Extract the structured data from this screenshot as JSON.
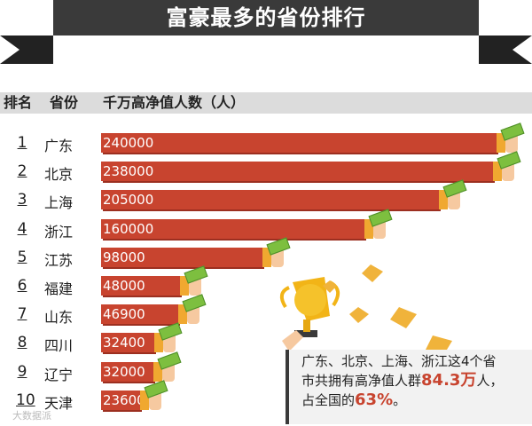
{
  "title": "富豪最多的省份排行",
  "headers": {
    "rank": "排名",
    "province": "省份",
    "value": "千万高净值人数（人）"
  },
  "colors": {
    "bar": "#c8442f",
    "banner": "#3a3a3a",
    "highlight": "#c8442f"
  },
  "callout": {
    "line1": "广东、北京、上海、浙江这4个省",
    "line2_prefix": "市共拥有高净值人群",
    "line2_value": "84.3万",
    "line2_suffix": "人，",
    "line3_prefix": "占全国的",
    "line3_value": "63%",
    "line3_suffix": "。"
  },
  "watermark": "大数据派",
  "chart_data": {
    "type": "bar",
    "orientation": "horizontal",
    "ranks": [
      "1",
      "2",
      "3",
      "4",
      "5",
      "6",
      "7",
      "8",
      "9",
      "10"
    ],
    "categories": [
      "广东",
      "北京",
      "上海",
      "浙江",
      "江苏",
      "福建",
      "山东",
      "四川",
      "辽宁",
      "天津"
    ],
    "values": [
      240000,
      238000,
      205000,
      160000,
      98000,
      48000,
      46900,
      32400,
      32000,
      23600
    ],
    "labels": [
      "240000",
      "238000",
      "205000",
      "160000",
      "98000",
      "48000",
      "46900",
      "32400",
      "32000",
      "23600"
    ],
    "xlim": [
      0,
      240000
    ]
  }
}
